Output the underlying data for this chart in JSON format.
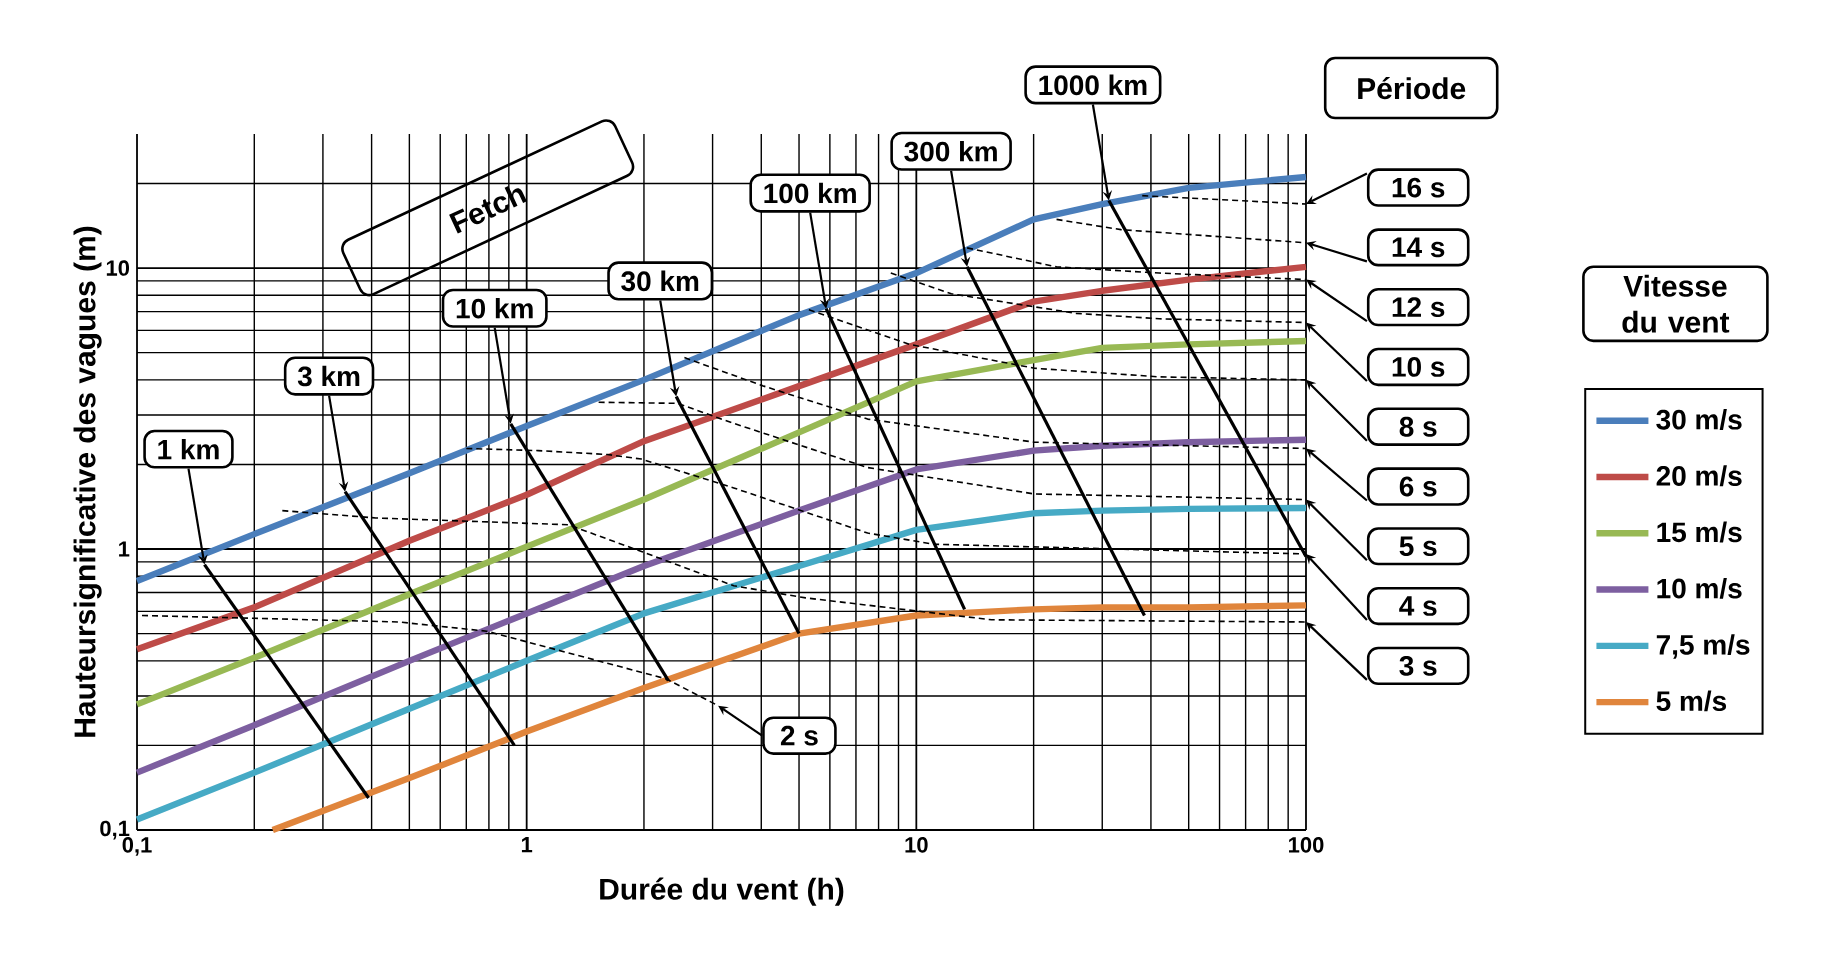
{
  "chart_data": {
    "type": "line",
    "xlabel": "Durée du vent (h)",
    "ylabel": "Hauteursignificative  des vagues (m)",
    "legend_title": "Vitesse du vent",
    "log": "xy",
    "grid": true,
    "legend": "right",
    "xlim": [
      0.1,
      100
    ],
    "ylim": [
      0.1,
      30
    ],
    "xticks": [
      {
        "value": 0.1,
        "label": "0,1"
      },
      1,
      10,
      100
    ],
    "yticks": [
      {
        "value": 0.1,
        "label": "0,1"
      },
      1,
      10
    ],
    "series": [
      {
        "name": "30 m/s",
        "color": "#4a7ebb",
        "x": [
          0.1,
          0.2,
          0.5,
          1,
          2,
          5,
          10,
          20,
          30,
          50,
          100
        ],
        "values": [
          0.77,
          1.13,
          1.86,
          2.74,
          4.0,
          6.8,
          9.6,
          14.9,
          16.9,
          19.3,
          21.1
        ]
      },
      {
        "name": "20 m/s",
        "color": "#be4b48",
        "x": [
          0.1,
          0.2,
          0.5,
          1,
          2,
          5,
          10,
          20,
          30,
          50,
          100
        ],
        "values": [
          0.44,
          0.62,
          1.07,
          1.56,
          2.42,
          3.8,
          5.35,
          7.6,
          8.3,
          9.1,
          10.1
        ]
      },
      {
        "name": "15 m/s",
        "color": "#98b954",
        "x": [
          0.1,
          0.2,
          0.5,
          1,
          2,
          5,
          10,
          20,
          30,
          50,
          100
        ],
        "values": [
          0.28,
          0.41,
          0.69,
          1.02,
          1.5,
          2.6,
          3.95,
          4.7,
          5.2,
          5.35,
          5.5
        ]
      },
      {
        "name": "10 m/s",
        "color": "#7d5fa0",
        "x": [
          0.1,
          0.2,
          0.5,
          1,
          2,
          5,
          10,
          20,
          30,
          50,
          100
        ],
        "values": [
          0.16,
          0.236,
          0.4,
          0.59,
          0.87,
          1.37,
          1.92,
          2.24,
          2.33,
          2.4,
          2.45
        ]
      },
      {
        "name": "7,5 m/s",
        "color": "#46aac5",
        "x": [
          0.1,
          0.2,
          0.5,
          1,
          2,
          5,
          10,
          20,
          30,
          50,
          100
        ],
        "values": [
          0.109,
          0.16,
          0.27,
          0.4,
          0.59,
          0.87,
          1.17,
          1.34,
          1.37,
          1.39,
          1.4
        ]
      },
      {
        "name": "5 m/s",
        "color": "#e0853c",
        "x": [
          0.223,
          0.5,
          1,
          2,
          5,
          10,
          20,
          30,
          50,
          100
        ],
        "values": [
          0.1,
          0.153,
          0.224,
          0.32,
          0.5,
          0.58,
          0.61,
          0.62,
          0.62,
          0.63
        ]
      },
      {
        "color": "#000000",
        "line_style": "dashed",
        "x": [
          0.103,
          0.47,
          0.79,
          2.28,
          3.1
        ],
        "values": [
          0.58,
          0.55,
          0.51,
          0.345,
          0.277
        ]
      },
      {
        "color": "#000000",
        "line_style": "dashed",
        "x": [
          0.236,
          0.41,
          1.28,
          1.97,
          3.4,
          5.2,
          15.6,
          100
        ],
        "values": [
          1.37,
          1.29,
          1.22,
          0.98,
          0.74,
          0.67,
          0.56,
          0.55
        ]
      },
      {
        "color": "#000000",
        "line_style": "dashed",
        "x": [
          0.7,
          1.07,
          1.61,
          1.97,
          3.4,
          7.5,
          11.1,
          100
        ],
        "values": [
          2.28,
          2.24,
          2.17,
          2.09,
          1.65,
          1.14,
          1.04,
          0.96
        ]
      },
      {
        "color": "#000000",
        "line_style": "dashed",
        "x": [
          1.53,
          2.44,
          3.4,
          7.5,
          20.1,
          100
        ],
        "values": [
          3.33,
          3.3,
          2.8,
          1.95,
          1.57,
          1.5
        ]
      },
      {
        "color": "#000000",
        "line_style": "dashed",
        "x": [
          2.54,
          4.06,
          7.5,
          20.1,
          100
        ],
        "values": [
          4.8,
          3.8,
          2.9,
          2.4,
          2.28
        ]
      },
      {
        "color": "#000000",
        "line_style": "dashed",
        "x": [
          5.3,
          9.6,
          20.1,
          42,
          100
        ],
        "values": [
          7.1,
          5.35,
          4.4,
          4.1,
          4.0
        ]
      },
      {
        "color": "#000000",
        "line_style": "dashed",
        "x": [
          8.6,
          12.3,
          25.7,
          42,
          100
        ],
        "values": [
          9.6,
          8.1,
          6.9,
          6.6,
          6.4
        ]
      },
      {
        "color": "#000000",
        "line_style": "dashed",
        "x": [
          13.5,
          22.9,
          42,
          100
        ],
        "values": [
          11.8,
          10.1,
          9.6,
          9.1
        ]
      },
      {
        "color": "#000000",
        "line_style": "dashed",
        "x": [
          22.9,
          33.5,
          100
        ],
        "values": [
          14.9,
          13.7,
          12.3
        ]
      },
      {
        "color": "#000000",
        "line_style": "dashed",
        "x": [
          38,
          100
        ],
        "values": [
          18.1,
          16.9
        ]
      },
      {
        "color": "#000000",
        "x": [
          0.149,
          0.393
        ],
        "values": [
          0.88,
          0.13
        ]
      },
      {
        "color": "#000000",
        "x": [
          0.342,
          0.93
        ],
        "values": [
          1.6,
          0.2
        ]
      },
      {
        "color": "#000000",
        "x": [
          0.91,
          2.31
        ],
        "values": [
          2.79,
          0.34
        ]
      },
      {
        "color": "#000000",
        "x": [
          2.42,
          5.0
        ],
        "values": [
          3.49,
          0.5
        ]
      },
      {
        "color": "#000000",
        "x": [
          5.87,
          13.3
        ],
        "values": [
          7.17,
          0.61
        ]
      },
      {
        "color": "#000000",
        "x": [
          13.5,
          38.5
        ],
        "values": [
          10.1,
          0.58
        ]
      },
      {
        "color": "#000000",
        "x": [
          31.2,
          100
        ],
        "values": [
          17.4,
          0.94
        ]
      }
    ],
    "annotations": [
      "Fetch",
      {
        "text": "1 km",
        "x": 0.149,
        "y": 0.88
      },
      {
        "text": "3 km",
        "x": 0.342,
        "y": 1.6
      },
      {
        "text": "10 km",
        "x": 0.91,
        "y": 2.79
      },
      {
        "text": "30 km",
        "x": 2.42,
        "y": 3.49
      },
      {
        "text": "100 km",
        "x": 5.87,
        "y": 7.17
      },
      {
        "text": "300 km",
        "x": 13.5,
        "y": 10.1
      },
      {
        "text": "1000 km",
        "x": 31.2,
        "y": 17.4
      },
      "Période",
      {
        "text": "2 s",
        "x": 3.1,
        "y": 0.277
      },
      {
        "text": "16 s",
        "x": 100,
        "y": 16.9
      },
      {
        "text": "14 s",
        "x": 100,
        "y": 12.3
      },
      {
        "text": "12 s",
        "x": 100,
        "y": 9.1
      },
      {
        "text": "10 s",
        "x": 100,
        "y": 6.4
      },
      {
        "text": "8 s",
        "x": 100,
        "y": 4.0
      },
      {
        "text": "6 s",
        "x": 100,
        "y": 2.28
      },
      {
        "text": "5 s",
        "x": 100,
        "y": 1.5
      },
      {
        "text": "4 s",
        "x": 100,
        "y": 0.96
      },
      {
        "text": "3 s",
        "x": 100,
        "y": 0.55
      }
    ]
  }
}
